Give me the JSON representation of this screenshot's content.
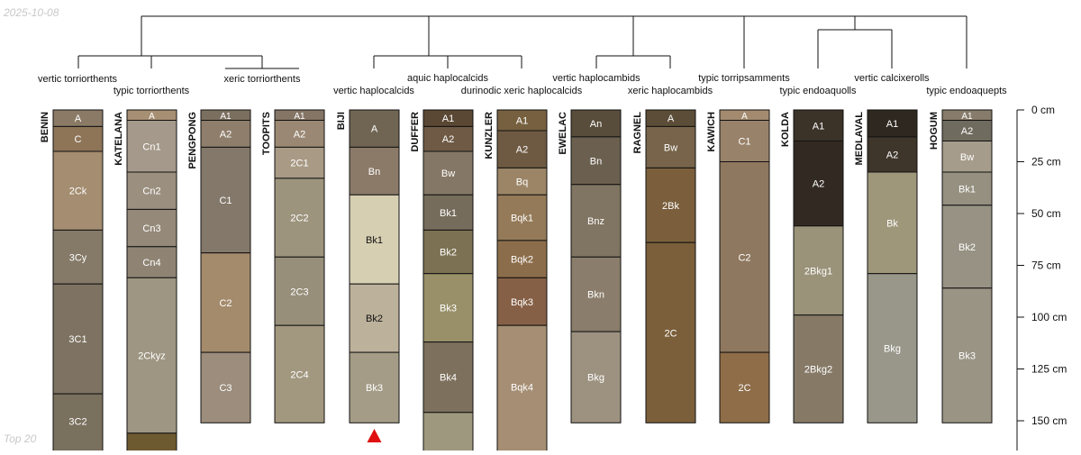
{
  "header": {
    "date_stamp": "2025-10-08"
  },
  "footer": {
    "note": "Top 20"
  },
  "colors": {
    "line": "#111111",
    "marker": "#e01010",
    "light_text": "#ffffff",
    "dark_text": "#111111"
  },
  "dendrogram_labels": [
    {
      "id": "vertic-torriorthents",
      "text": "vertic torriorthents"
    },
    {
      "id": "typic-torriorthents",
      "text": "typic torriorthents"
    },
    {
      "id": "xeric-torriorthents",
      "text": "xeric torriorthents"
    },
    {
      "id": "aquic-haplocalcids",
      "text": "aquic haplocalcids"
    },
    {
      "id": "vertic-haplocalcids",
      "text": "vertic haplocalcids"
    },
    {
      "id": "durinodic-xeric-haplocalcids",
      "text": "durinodic xeric haplocalcids"
    },
    {
      "id": "vertic-haplocambids",
      "text": "vertic haplocambids"
    },
    {
      "id": "xeric-haplocambids",
      "text": "xeric haplocambids"
    },
    {
      "id": "typic-torripsamments",
      "text": "typic torripsamments"
    },
    {
      "id": "typic-endoaquolls",
      "text": "typic endoaquolls"
    },
    {
      "id": "vertic-calcixerolls",
      "text": "vertic calcixerolls"
    },
    {
      "id": "typic-endoaquepts",
      "text": "typic endoaquepts"
    }
  ],
  "depth_axis": {
    "unit": "cm",
    "ticks": [
      {
        "depth": 0,
        "label": "0 cm"
      },
      {
        "depth": 25,
        "label": "25 cm"
      },
      {
        "depth": 50,
        "label": "50 cm"
      },
      {
        "depth": 75,
        "label": "75 cm"
      },
      {
        "depth": 100,
        "label": "100 cm"
      },
      {
        "depth": 125,
        "label": "125 cm"
      },
      {
        "depth": 150,
        "label": "150 cm"
      }
    ]
  },
  "profiles": [
    {
      "name": "BENIN",
      "horizons": [
        {
          "name": "A",
          "top": 0,
          "bottom": 8,
          "color": "#8a7a66"
        },
        {
          "name": "C",
          "top": 8,
          "bottom": 20,
          "color": "#8e7558"
        },
        {
          "name": "2Ck",
          "top": 20,
          "bottom": 58,
          "color": "#a48d70"
        },
        {
          "name": "3Cy",
          "top": 58,
          "bottom": 84,
          "color": "#857a68"
        },
        {
          "name": "3C1",
          "top": 84,
          "bottom": 137,
          "color": "#7e7362"
        },
        {
          "name": "3C2",
          "top": 137,
          "bottom": 165,
          "color": "#7a705e"
        }
      ]
    },
    {
      "name": "KATELANA",
      "horizons": [
        {
          "name": "A",
          "top": 0,
          "bottom": 5,
          "color": "#a68f72"
        },
        {
          "name": "Cn1",
          "top": 5,
          "bottom": 30,
          "color": "#a4998a"
        },
        {
          "name": "Cn2",
          "top": 30,
          "bottom": 48,
          "color": "#9b907f"
        },
        {
          "name": "Cn3",
          "top": 48,
          "bottom": 66,
          "color": "#958a79"
        },
        {
          "name": "Cn4",
          "top": 66,
          "bottom": 81,
          "color": "#8f8474"
        },
        {
          "name": "2Ckyz",
          "top": 81,
          "bottom": 156,
          "color": "#9e9682"
        },
        {
          "name": "",
          "top": 156,
          "bottom": 165,
          "color": "#6e5a30"
        }
      ]
    },
    {
      "name": "PENGPONG",
      "horizons": [
        {
          "name": "A1",
          "top": 0,
          "bottom": 5,
          "color": "#7b6f60"
        },
        {
          "name": "A2",
          "top": 5,
          "bottom": 18,
          "color": "#8e7e6b"
        },
        {
          "name": "C1",
          "top": 18,
          "bottom": 69,
          "color": "#84786a"
        },
        {
          "name": "C2",
          "top": 69,
          "bottom": 117,
          "color": "#a48b6c"
        },
        {
          "name": "C3",
          "top": 117,
          "bottom": 151,
          "color": "#9c8d7c"
        }
      ]
    },
    {
      "name": "TOOPITS",
      "horizons": [
        {
          "name": "A1",
          "top": 0,
          "bottom": 5,
          "color": "#847565"
        },
        {
          "name": "A2",
          "top": 5,
          "bottom": 18,
          "color": "#9a8874"
        },
        {
          "name": "2C1",
          "top": 18,
          "bottom": 33,
          "color": "#a99a85"
        },
        {
          "name": "2C2",
          "top": 33,
          "bottom": 71,
          "color": "#9d947d"
        },
        {
          "name": "2C3",
          "top": 71,
          "bottom": 104,
          "color": "#978f7a"
        },
        {
          "name": "2C4",
          "top": 104,
          "bottom": 151,
          "color": "#a2977f"
        }
      ]
    },
    {
      "name": "BIJI",
      "horizons": [
        {
          "name": "A",
          "top": 0,
          "bottom": 18,
          "color": "#706553"
        },
        {
          "name": "Bn",
          "top": 18,
          "bottom": 41,
          "color": "#8b7a68"
        },
        {
          "name": "Bk1",
          "top": 41,
          "bottom": 84,
          "color": "#d7cfb2"
        },
        {
          "name": "Bk2",
          "top": 84,
          "bottom": 117,
          "color": "#bcb19a"
        },
        {
          "name": "Bk3",
          "top": 117,
          "bottom": 151,
          "color": "#a49c86"
        }
      ]
    },
    {
      "name": "DUFFER",
      "horizons": [
        {
          "name": "A1",
          "top": 0,
          "bottom": 8,
          "color": "#5b4834"
        },
        {
          "name": "A2",
          "top": 8,
          "bottom": 20,
          "color": "#6e5a45"
        },
        {
          "name": "Bw",
          "top": 20,
          "bottom": 41,
          "color": "#857765"
        },
        {
          "name": "Bk1",
          "top": 41,
          "bottom": 58,
          "color": "#766c5b"
        },
        {
          "name": "Bk2",
          "top": 58,
          "bottom": 79,
          "color": "#7c7152"
        },
        {
          "name": "Bk3",
          "top": 79,
          "bottom": 112,
          "color": "#999069"
        },
        {
          "name": "Bk4",
          "top": 112,
          "bottom": 146,
          "color": "#7d705c"
        },
        {
          "name": "",
          "top": 146,
          "bottom": 165,
          "color": "#9e987e"
        }
      ]
    },
    {
      "name": "KUNZLER",
      "horizons": [
        {
          "name": "A1",
          "top": 0,
          "bottom": 10,
          "color": "#76603f"
        },
        {
          "name": "A2",
          "top": 10,
          "bottom": 28,
          "color": "#6e5a42"
        },
        {
          "name": "Bq",
          "top": 28,
          "bottom": 41,
          "color": "#9b8566"
        },
        {
          "name": "Bqk1",
          "top": 41,
          "bottom": 63,
          "color": "#947a58"
        },
        {
          "name": "Bqk2",
          "top": 63,
          "bottom": 81,
          "color": "#8c6d4b"
        },
        {
          "name": "Bqk3",
          "top": 81,
          "bottom": 104,
          "color": "#866046"
        },
        {
          "name": "Bqk4",
          "top": 104,
          "bottom": 165,
          "color": "#a58e73"
        }
      ]
    },
    {
      "name": "EWELAC",
      "horizons": [
        {
          "name": "An",
          "top": 0,
          "bottom": 13,
          "color": "#584c3b"
        },
        {
          "name": "Bn",
          "top": 13,
          "bottom": 36,
          "color": "#6b604f"
        },
        {
          "name": "Bnz",
          "top": 36,
          "bottom": 71,
          "color": "#807562"
        },
        {
          "name": "Bkn",
          "top": 71,
          "bottom": 107,
          "color": "#8a7d6b"
        },
        {
          "name": "Bkg",
          "top": 107,
          "bottom": 151,
          "color": "#9d9280"
        }
      ]
    },
    {
      "name": "RAGNEL",
      "horizons": [
        {
          "name": "A",
          "top": 0,
          "bottom": 8,
          "color": "#5b4d37"
        },
        {
          "name": "Bw",
          "top": 8,
          "bottom": 28,
          "color": "#77644a"
        },
        {
          "name": "2Bk",
          "top": 28,
          "bottom": 64,
          "color": "#7b5f3c"
        },
        {
          "name": "2C",
          "top": 64,
          "bottom": 151,
          "color": "#7b5f3a"
        }
      ]
    },
    {
      "name": "KAWICH",
      "horizons": [
        {
          "name": "A",
          "top": 0,
          "bottom": 5,
          "color": "#a48b70"
        },
        {
          "name": "C1",
          "top": 5,
          "bottom": 25,
          "color": "#99826a"
        },
        {
          "name": "C2",
          "top": 25,
          "bottom": 117,
          "color": "#8f7860"
        },
        {
          "name": "2C",
          "top": 117,
          "bottom": 151,
          "color": "#8e6d48"
        }
      ]
    },
    {
      "name": "KOLDA",
      "horizons": [
        {
          "name": "A1",
          "top": 0,
          "bottom": 15,
          "color": "#3b3228"
        },
        {
          "name": "A2",
          "top": 15,
          "bottom": 56,
          "color": "#322a22"
        },
        {
          "name": "2Bkg1",
          "top": 56,
          "bottom": 99,
          "color": "#9a9279"
        },
        {
          "name": "2Bkg2",
          "top": 99,
          "bottom": 151,
          "color": "#867a67"
        }
      ]
    },
    {
      "name": "MEDLAVAL",
      "horizons": [
        {
          "name": "A1",
          "top": 0,
          "bottom": 13,
          "color": "#2e2820"
        },
        {
          "name": "A2",
          "top": 13,
          "bottom": 30,
          "color": "#3e352b"
        },
        {
          "name": "Bk",
          "top": 30,
          "bottom": 79,
          "color": "#9e977a"
        },
        {
          "name": "Bkg",
          "top": 79,
          "bottom": 151,
          "color": "#99978a"
        }
      ]
    },
    {
      "name": "HOGUM",
      "horizons": [
        {
          "name": "A1",
          "top": 0,
          "bottom": 5,
          "color": "#877c6b"
        },
        {
          "name": "A2",
          "top": 5,
          "bottom": 15,
          "color": "#6f6b5e"
        },
        {
          "name": "Bw",
          "top": 15,
          "bottom": 30,
          "color": "#a69c8b"
        },
        {
          "name": "Bk1",
          "top": 30,
          "bottom": 46,
          "color": "#959080"
        },
        {
          "name": "Bk2",
          "top": 46,
          "bottom": 86,
          "color": "#979283"
        },
        {
          "name": "Bk3",
          "top": 86,
          "bottom": 151,
          "color": "#999484"
        }
      ]
    }
  ],
  "missing_data_markers": [
    {
      "profile": "BIJI",
      "symbol": "triangle"
    }
  ]
}
